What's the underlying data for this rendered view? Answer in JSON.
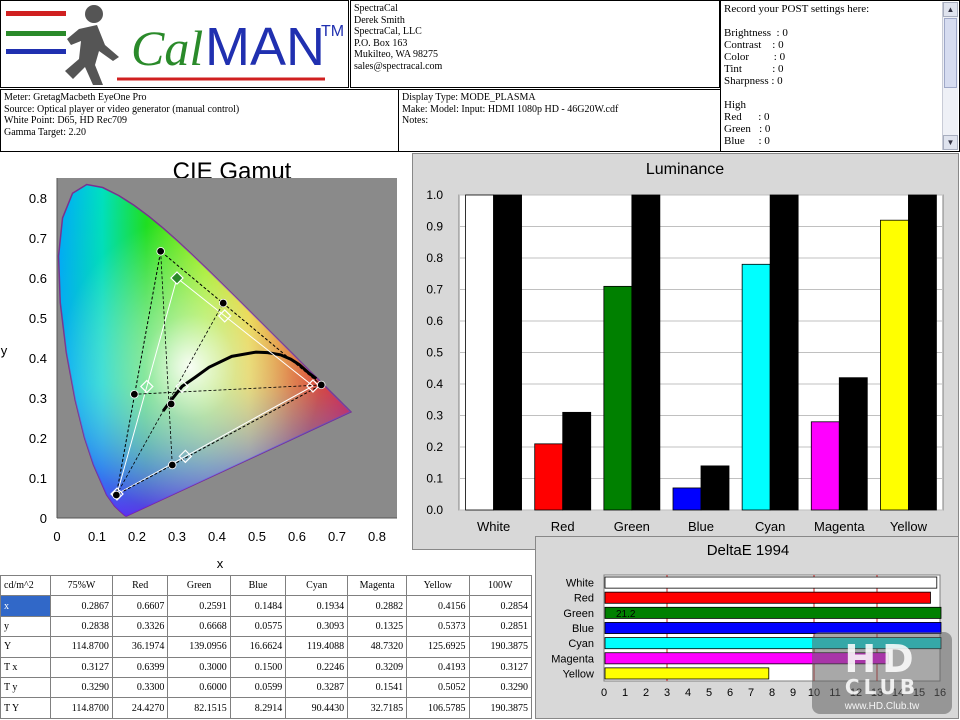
{
  "logo": {
    "brand_cal": "Cal",
    "brand_man": "MAN",
    "tm": "TM"
  },
  "contact": [
    "SpectraCal",
    "Derek Smith",
    "SpectraCal, LLC",
    "P.O. Box 163",
    "Mukilteo, WA 98275",
    "sales@spectracal.com"
  ],
  "settings": {
    "title": "Record your POST settings here:",
    "lines": [
      "Brightness  : 0",
      "Contrast    : 0",
      "Color         : 0",
      "Tint           : 0",
      "Sharpness : 0",
      "",
      "High",
      "Red      : 0",
      "Green   : 0",
      "Blue     : 0"
    ]
  },
  "meter_info": [
    "Meter: GretagMacbeth EyeOne Pro",
    "Source: Optical player or video generator (manual control)",
    "White Point: D65, HD Rec709",
    "Gamma Target: 2.20"
  ],
  "display_info": [
    "Display Type: MODE_PLASMA",
    "Make: Model: Input: HDMI 1080p HD      -      46G20W.cdf",
    "Notes:"
  ],
  "colors": {
    "red": "#ff0000",
    "green": "#008000",
    "blue": "#0000ff",
    "cyan": "#00ffff",
    "magenta": "#ff00ff",
    "yellow": "#ffff00",
    "white": "#ffffff",
    "black": "#000000",
    "panel": "#d4d4d4",
    "selected": "#3168c8"
  },
  "table": {
    "header": [
      "cd/m^2",
      "75%W",
      "Red",
      "Green",
      "Blue",
      "Cyan",
      "Magenta",
      "Yellow",
      "100W"
    ],
    "rows": [
      [
        "x",
        "0.2867",
        "0.6607",
        "0.2591",
        "0.1484",
        "0.1934",
        "0.2882",
        "0.4156",
        "0.2854"
      ],
      [
        "y",
        "0.2838",
        "0.3326",
        "0.6668",
        "0.0575",
        "0.3093",
        "0.1325",
        "0.5373",
        "0.2851"
      ],
      [
        "Y",
        "114.8700",
        "36.1974",
        "139.0956",
        "16.6624",
        "119.4088",
        "48.7320",
        "125.6925",
        "190.3875"
      ],
      [
        "T x",
        "0.3127",
        "0.6399",
        "0.3000",
        "0.1500",
        "0.2246",
        "0.3209",
        "0.4193",
        "0.3127"
      ],
      [
        "T y",
        "0.3290",
        "0.3300",
        "0.6000",
        "0.0599",
        "0.3287",
        "0.1541",
        "0.5052",
        "0.3290"
      ],
      [
        "T Y",
        "114.8700",
        "24.4270",
        "82.1515",
        "8.2914",
        "90.4430",
        "32.7185",
        "106.5785",
        "190.3875"
      ]
    ]
  },
  "chart_data": [
    {
      "type": "scatter",
      "title": "CIE Gamut",
      "xlabel": "x",
      "ylabel": "y",
      "xlim": [
        0,
        0.85
      ],
      "ylim": [
        0,
        0.85
      ],
      "xticks": [
        "0",
        "0.1",
        "0.2",
        "0.3",
        "0.4",
        "0.5",
        "0.6",
        "0.7",
        "0.8"
      ],
      "yticks": [
        "0",
        "0.1",
        "0.2",
        "0.3",
        "0.4",
        "0.5",
        "0.6",
        "0.7",
        "0.8"
      ],
      "measured": [
        {
          "name": "Red",
          "x": 0.6607,
          "y": 0.3326
        },
        {
          "name": "Green",
          "x": 0.2591,
          "y": 0.6668
        },
        {
          "name": "Blue",
          "x": 0.1484,
          "y": 0.0575
        },
        {
          "name": "Cyan",
          "x": 0.1934,
          "y": 0.3093
        },
        {
          "name": "Magenta",
          "x": 0.2882,
          "y": 0.1325
        },
        {
          "name": "Yellow",
          "x": 0.4156,
          "y": 0.5373
        },
        {
          "name": "White",
          "x": 0.2854,
          "y": 0.2851
        }
      ],
      "target": [
        {
          "name": "Red",
          "x": 0.6399,
          "y": 0.33
        },
        {
          "name": "Green",
          "x": 0.3,
          "y": 0.6
        },
        {
          "name": "Blue",
          "x": 0.15,
          "y": 0.0599
        },
        {
          "name": "Cyan",
          "x": 0.2246,
          "y": 0.3287
        },
        {
          "name": "Magenta",
          "x": 0.3209,
          "y": 0.1541
        },
        {
          "name": "Yellow",
          "x": 0.4193,
          "y": 0.5052
        },
        {
          "name": "White",
          "x": 0.3127,
          "y": 0.329
        }
      ]
    },
    {
      "type": "bar",
      "title": "Luminance",
      "categories": [
        "White",
        "Red",
        "Green",
        "Blue",
        "Cyan",
        "Magenta",
        "Yellow"
      ],
      "ylim": [
        0,
        1.0
      ],
      "yticks": [
        "0.0",
        "0.1",
        "0.2",
        "0.3",
        "0.4",
        "0.5",
        "0.6",
        "0.7",
        "0.8",
        "0.9",
        "1.0"
      ],
      "series": [
        {
          "values": [
            1.0,
            0.21,
            0.71,
            0.07,
            0.78,
            0.28,
            0.92
          ],
          "colors": [
            "#ffffff",
            "#ff0000",
            "#008000",
            "#0000ff",
            "#00ffff",
            "#ff00ff",
            "#ffff00"
          ]
        },
        {
          "values": [
            1.0,
            0.31,
            1.0,
            0.14,
            1.0,
            0.42,
            1.0
          ],
          "colors": [
            "#000000",
            "#000000",
            "#000000",
            "#000000",
            "#000000",
            "#000000",
            "#000000"
          ]
        }
      ]
    },
    {
      "type": "bar",
      "orientation": "horizontal",
      "title": "DeltaE 1994",
      "categories": [
        "White",
        "Red",
        "Green",
        "Blue",
        "Cyan",
        "Magenta",
        "Yellow"
      ],
      "values": [
        15.8,
        15.5,
        21.2,
        18.0,
        16.0,
        13.5,
        7.8
      ],
      "colors": [
        "#ffffff",
        "#ff0000",
        "#008000",
        "#0000ff",
        "#00ffff",
        "#ff00ff",
        "#ffff00"
      ],
      "data_labels": [
        "",
        "",
        "21.2",
        "",
        "",
        "",
        ""
      ],
      "xlim": [
        0,
        20
      ],
      "xticks": [
        "0",
        "1",
        "2",
        "3",
        "4",
        "5",
        "6",
        "7",
        "8",
        "9",
        "10",
        "11",
        "12",
        "13",
        "14",
        "15",
        "16"
      ],
      "reference_lines": [
        3,
        10,
        13
      ]
    }
  ],
  "watermark": {
    "text": "HD",
    "line2": "CLUB",
    "url": "www.HD.Club.tw"
  }
}
